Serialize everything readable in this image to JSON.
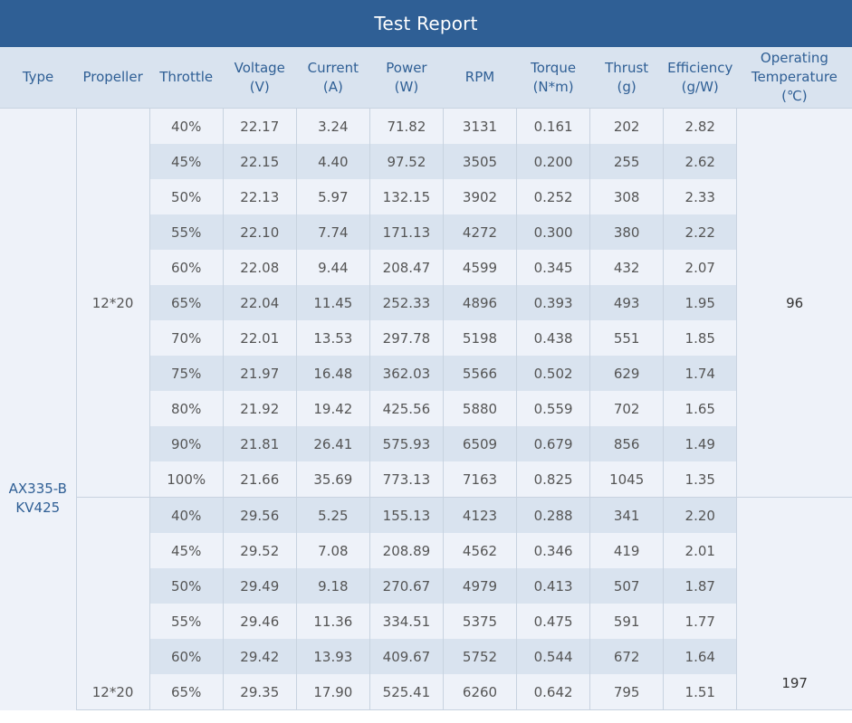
{
  "title": "Test Report",
  "headers": [
    [
      "Type"
    ],
    [
      "Propeller"
    ],
    [
      "Throttle"
    ],
    [
      "Voltage",
      "(V)"
    ],
    [
      "Current",
      "(A)"
    ],
    [
      "Power",
      "(W)"
    ],
    [
      "RPM"
    ],
    [
      "Torque",
      "(N*m)"
    ],
    [
      "Thrust",
      "(g)"
    ],
    [
      "Efficiency",
      "(g/W)"
    ],
    [
      "Operating",
      "Temperature",
      "(℃)"
    ]
  ],
  "type_label": [
    "AX335-B",
    "KV425"
  ],
  "groups": [
    {
      "propeller": "12*20",
      "temperature": "96",
      "rows": [
        [
          "40%",
          "22.17",
          "3.24",
          "71.82",
          "3131",
          "0.161",
          "202",
          "2.82"
        ],
        [
          "45%",
          "22.15",
          "4.40",
          "97.52",
          "3505",
          "0.200",
          "255",
          "2.62"
        ],
        [
          "50%",
          "22.13",
          "5.97",
          "132.15",
          "3902",
          "0.252",
          "308",
          "2.33"
        ],
        [
          "55%",
          "22.10",
          "7.74",
          "171.13",
          "4272",
          "0.300",
          "380",
          "2.22"
        ],
        [
          "60%",
          "22.08",
          "9.44",
          "208.47",
          "4599",
          "0.345",
          "432",
          "2.07"
        ],
        [
          "65%",
          "22.04",
          "11.45",
          "252.33",
          "4896",
          "0.393",
          "493",
          "1.95"
        ],
        [
          "70%",
          "22.01",
          "13.53",
          "297.78",
          "5198",
          "0.438",
          "551",
          "1.85"
        ],
        [
          "75%",
          "21.97",
          "16.48",
          "362.03",
          "5566",
          "0.502",
          "629",
          "1.74"
        ],
        [
          "80%",
          "21.92",
          "19.42",
          "425.56",
          "5880",
          "0.559",
          "702",
          "1.65"
        ],
        [
          "90%",
          "21.81",
          "26.41",
          "575.93",
          "6509",
          "0.679",
          "856",
          "1.49"
        ],
        [
          "100%",
          "21.66",
          "35.69",
          "773.13",
          "7163",
          "0.825",
          "1045",
          "1.35"
        ]
      ]
    },
    {
      "propeller": "12*20",
      "temperature": "197",
      "rows": [
        [
          "40%",
          "29.56",
          "5.25",
          "155.13",
          "4123",
          "0.288",
          "341",
          "2.20"
        ],
        [
          "45%",
          "29.52",
          "7.08",
          "208.89",
          "4562",
          "0.346",
          "419",
          "2.01"
        ],
        [
          "50%",
          "29.49",
          "9.18",
          "270.67",
          "4979",
          "0.413",
          "507",
          "1.87"
        ],
        [
          "55%",
          "29.46",
          "11.36",
          "334.51",
          "5375",
          "0.475",
          "591",
          "1.77"
        ],
        [
          "60%",
          "29.42",
          "13.93",
          "409.67",
          "5752",
          "0.544",
          "672",
          "1.64"
        ],
        [
          "65%",
          "29.35",
          "17.90",
          "525.41",
          "6260",
          "0.642",
          "795",
          "1.51"
        ]
      ]
    }
  ],
  "colors": {
    "header_bar": "#2f5f95",
    "header_row": "#d9e3ef",
    "row_light": "#eef2f9",
    "row_dark": "#d9e3ef",
    "header_text": "#2f5f95"
  }
}
